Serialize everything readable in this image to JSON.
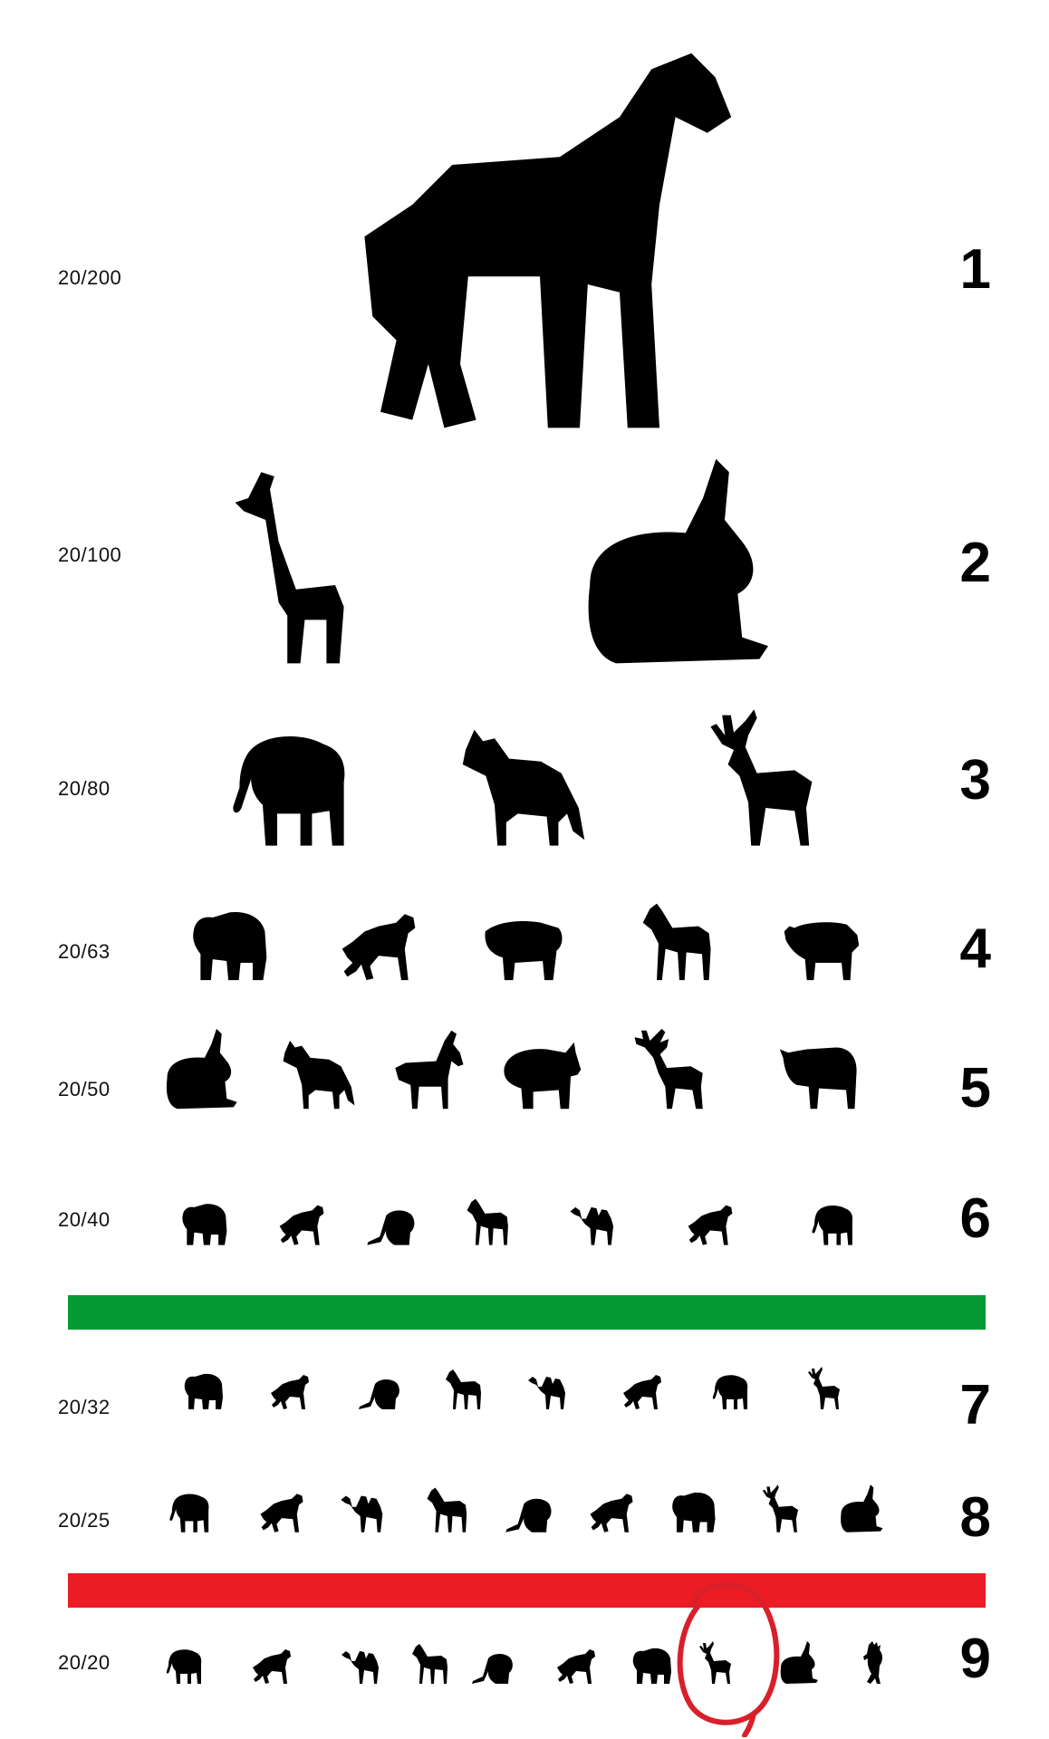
{
  "rows": [
    {
      "acuity": "20/200",
      "number": "1",
      "animals": [
        "horse"
      ]
    },
    {
      "acuity": "20/100",
      "number": "2",
      "animals": [
        "giraffe",
        "rabbit"
      ]
    },
    {
      "acuity": "20/80",
      "number": "3",
      "animals": [
        "elephant",
        "wolf",
        "deer"
      ]
    },
    {
      "acuity": "20/63",
      "number": "4",
      "animals": [
        "bear",
        "lion",
        "hippo",
        "zebra",
        "pig"
      ]
    },
    {
      "acuity": "20/50",
      "number": "5",
      "animals": [
        "rabbit",
        "wolf",
        "goat",
        "rhino",
        "reindeer",
        "buffalo"
      ]
    },
    {
      "acuity": "20/40",
      "number": "6",
      "animals": [
        "bear",
        "lion",
        "beaver",
        "zebra",
        "camel",
        "lion",
        "elephant"
      ]
    },
    {
      "acuity": "20/32",
      "number": "7",
      "animals": [
        "bear",
        "lion",
        "beaver",
        "zebra",
        "camel",
        "lion",
        "elephant",
        "deer"
      ]
    },
    {
      "acuity": "20/25",
      "number": "8",
      "animals": [
        "elephant",
        "lion",
        "camel",
        "zebra",
        "beaver",
        "lion",
        "bear",
        "deer",
        "rabbit"
      ]
    },
    {
      "acuity": "20/20",
      "number": "9",
      "animals": [
        "elephant",
        "lion",
        "camel",
        "zebra",
        "beaver",
        "lion",
        "bear",
        "deer",
        "rabbit",
        "cockatoo"
      ]
    }
  ],
  "bars": {
    "green": "#039a34",
    "red": "#ec1c24"
  },
  "highlight": {
    "color": "#d8202a",
    "row": 9,
    "index": 7
  }
}
